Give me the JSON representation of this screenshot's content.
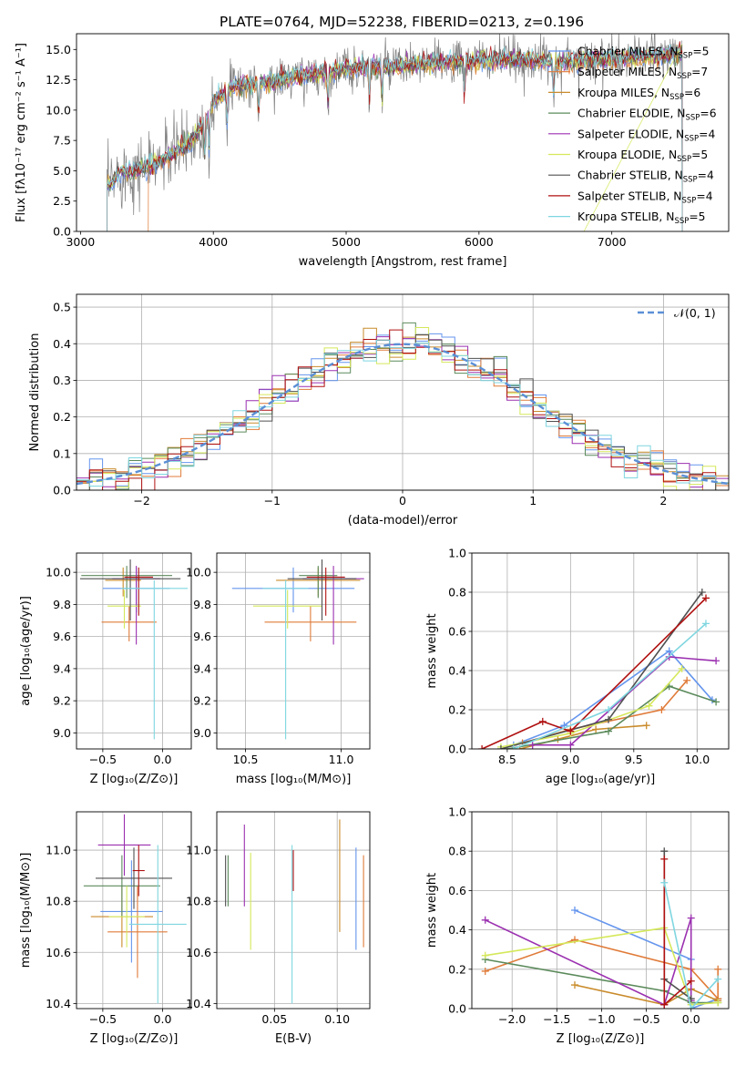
{
  "figure": {
    "title": "PLATE=0764, MJD=52238, FIBERID=0213, z=0.196"
  },
  "series_colors": [
    "#6495ed",
    "#e07b39",
    "#c98b2b",
    "#5b8a5b",
    "#9b30b0",
    "#d5e85a",
    "#505050",
    "#b01010",
    "#7fd6e0"
  ],
  "chart_data": [
    {
      "id": "spectrum",
      "type": "line",
      "xlabel": "wavelength [Angstrom, rest frame]",
      "ylabel": "Flux [fλ10⁻¹⁷ erg cm⁻² s⁻¹ A⁻¹]",
      "xlim": [
        2970,
        7880
      ],
      "ylim": [
        0,
        16.3
      ],
      "xticks": [
        3000,
        4000,
        5000,
        6000,
        7000
      ],
      "yticks": [
        0.0,
        2.5,
        5.0,
        7.5,
        10.0,
        12.5,
        15.0
      ],
      "grid": false,
      "legend_placement": "top-right",
      "legend": [
        "Chabrier MILES, N_SSP=5",
        "Salpeter MILES, N_SSP=7",
        "Kroupa MILES, N_SSP=6",
        "Chabrier ELODIE, N_SSP=6",
        "Salpeter ELODIE, N_SSP=4",
        "Kroupa ELODIE, N_SSP=5",
        "Chabrier STELIB, N_SSP=4",
        "Salpeter STELIB, N_SSP=4",
        "Kroupa STELIB, N_SSP=5"
      ],
      "continuum_x": [
        3200,
        3300,
        3500,
        3700,
        3850,
        3950,
        4000,
        4100,
        4200,
        4400,
        4600,
        4800,
        5000,
        5200,
        5400,
        5600,
        5800,
        6000,
        6200,
        6400,
        6600,
        6800,
        7000,
        7200,
        7400,
        7500
      ],
      "continuum_y": [
        3.6,
        4.9,
        5.2,
        6.5,
        7.6,
        9.3,
        10.8,
        11.7,
        12.0,
        12.3,
        12.7,
        13.0,
        13.4,
        13.5,
        13.6,
        13.8,
        14.0,
        14.1,
        14.2,
        14.1,
        14.0,
        14.1,
        14.2,
        14.3,
        14.5,
        14.6
      ],
      "model_start_x": [
        3200,
        3510,
        3200,
        3200,
        3200,
        3200,
        3200,
        3200,
        3200
      ],
      "model_end_x": [
        7530,
        7530,
        7530,
        7530,
        7530,
        6790,
        7530,
        7530,
        7530
      ]
    },
    {
      "id": "residual_histogram",
      "type": "line",
      "xlabel": "(data-model)/error",
      "ylabel": "Normed distribution",
      "xlim": [
        -2.5,
        2.5
      ],
      "ylim": [
        0,
        0.535
      ],
      "xticks": [
        -2,
        -1,
        0,
        1,
        2
      ],
      "yticks": [
        0.0,
        0.1,
        0.2,
        0.3,
        0.4,
        0.5
      ],
      "grid": true,
      "legend_placement": "top-right",
      "legend": [
        "𝒩(0, 1)"
      ],
      "bin_width": 0.1,
      "gaussian": {
        "mean": 0,
        "sigma": 1,
        "color": "#5b8fd6"
      }
    },
    {
      "id": "age_vs_Z",
      "type": "scatter",
      "xlabel": "Z [log₁₀(Z/Z⊙)]",
      "ylabel": "age  [log₁₀(age/yr)]",
      "xlim": [
        -0.72,
        0.24
      ],
      "ylim": [
        8.9,
        10.12
      ],
      "xticks": [
        -0.5,
        0.0
      ],
      "yticks": [
        9.0,
        9.2,
        9.4,
        9.6,
        9.8,
        10.0
      ],
      "grid": true,
      "points": [
        {
          "x": -0.22,
          "y": 9.9,
          "xerr": 0.28,
          "yerr_lo": 0.15,
          "yerr_hi": 0.13
        },
        {
          "x": -0.28,
          "y": 9.69,
          "xerr": 0.23,
          "yerr_lo": 0.12,
          "yerr_hi": 0.1
        },
        {
          "x": -0.33,
          "y": 9.95,
          "xerr": 0.15,
          "yerr_lo": 0.1,
          "yerr_hi": 0.08
        },
        {
          "x": -0.3,
          "y": 9.98,
          "xerr": 0.38,
          "yerr_lo": 0.14,
          "yerr_hi": 0.06
        },
        {
          "x": -0.22,
          "y": 9.96,
          "xerr": 0.2,
          "yerr_lo": 0.41,
          "yerr_hi": 0.08
        },
        {
          "x": -0.32,
          "y": 9.79,
          "xerr": 0.14,
          "yerr_lo": 0.14,
          "yerr_hi": 0.1
        },
        {
          "x": -0.27,
          "y": 9.96,
          "xerr": 0.42,
          "yerr_lo": 0.26,
          "yerr_hi": 0.12
        },
        {
          "x": -0.2,
          "y": 9.97,
          "xerr": 0.12,
          "yerr_lo": 0.24,
          "yerr_hi": 0.06
        },
        {
          "x": -0.07,
          "y": 9.9,
          "xerr": 0.28,
          "yerr_lo": 0.94,
          "yerr_hi": 0.05
        }
      ]
    },
    {
      "id": "age_vs_mass",
      "type": "scatter",
      "xlabel": "mass [log₁₀(M/M⊙)]",
      "ylabel": "",
      "xlim": [
        10.35,
        11.15
      ],
      "ylim": [
        8.9,
        10.12
      ],
      "xticks": [
        10.5,
        11.0
      ],
      "yticks": [
        9.0,
        9.2,
        9.4,
        9.6,
        9.8,
        10.0
      ],
      "grid": true,
      "points": [
        {
          "x": 10.75,
          "y": 9.9,
          "xerr": 0.32,
          "yerr_lo": 0.15,
          "yerr_hi": 0.13
        },
        {
          "x": 10.84,
          "y": 9.69,
          "xerr": 0.24,
          "yerr_lo": 0.12,
          "yerr_hi": 0.1
        },
        {
          "x": 10.88,
          "y": 9.95,
          "xerr": 0.22,
          "yerr_lo": 0.1,
          "yerr_hi": 0.08
        },
        {
          "x": 10.88,
          "y": 9.98,
          "xerr": 0.1,
          "yerr_lo": 0.14,
          "yerr_hi": 0.06
        },
        {
          "x": 10.96,
          "y": 9.96,
          "xerr": 0.16,
          "yerr_lo": 0.41,
          "yerr_hi": 0.08
        },
        {
          "x": 10.72,
          "y": 9.79,
          "xerr": 0.18,
          "yerr_lo": 0.14,
          "yerr_hi": 0.1
        },
        {
          "x": 10.9,
          "y": 9.96,
          "xerr": 0.18,
          "yerr_lo": 0.26,
          "yerr_hi": 0.12
        },
        {
          "x": 10.92,
          "y": 9.97,
          "xerr": 0.1,
          "yerr_lo": 0.24,
          "yerr_hi": 0.06
        },
        {
          "x": 10.71,
          "y": 9.9,
          "xerr": 0.12,
          "yerr_lo": 0.94,
          "yerr_hi": 0.05
        }
      ]
    },
    {
      "id": "mass_weight_vs_age",
      "type": "line",
      "xlabel": "age  [log₁₀(age/yr)]",
      "ylabel": "mass weight",
      "xlim": [
        8.22,
        10.25
      ],
      "ylim": [
        0,
        1.0
      ],
      "xticks": [
        8.5,
        9.0,
        9.5,
        10.0
      ],
      "yticks": [
        0.0,
        0.2,
        0.4,
        0.6,
        0.8,
        1.0
      ],
      "grid": true,
      "series": [
        {
          "x": [
            8.55,
            8.95,
            9.78,
            10.12
          ],
          "y": [
            0.02,
            0.12,
            0.5,
            0.25
          ]
        },
        {
          "x": [
            8.62,
            9.0,
            9.72,
            9.92
          ],
          "y": [
            0.03,
            0.1,
            0.2,
            0.35
          ]
        },
        {
          "x": [
            8.6,
            8.9,
            9.2,
            9.6
          ],
          "y": [
            0.0,
            0.05,
            0.1,
            0.12
          ]
        },
        {
          "x": [
            8.5,
            9.3,
            9.78,
            10.15
          ],
          "y": [
            0.0,
            0.09,
            0.32,
            0.24
          ]
        },
        {
          "x": [
            8.7,
            9.0,
            9.78,
            10.15
          ],
          "y": [
            0.02,
            0.02,
            0.47,
            0.45
          ]
        },
        {
          "x": [
            8.45,
            9.0,
            9.62,
            9.88
          ],
          "y": [
            0.01,
            0.08,
            0.22,
            0.41
          ]
        },
        {
          "x": [
            8.45,
            9.3,
            10.04
          ],
          "y": [
            0.0,
            0.15,
            0.8
          ]
        },
        {
          "x": [
            8.3,
            8.78,
            9.0,
            10.07
          ],
          "y": [
            0.0,
            0.14,
            0.09,
            0.77
          ]
        },
        {
          "x": [
            8.55,
            9.3,
            10.07
          ],
          "y": [
            0.0,
            0.2,
            0.64
          ]
        }
      ]
    },
    {
      "id": "mass_vs_Z",
      "type": "scatter",
      "xlabel": "Z [log₁₀(Z/Z⊙)]",
      "ylabel": "mass [log₁₀(M/M⊙)]",
      "xlim": [
        -0.72,
        0.24
      ],
      "ylim": [
        10.38,
        11.15
      ],
      "xticks": [
        -0.5,
        0.0
      ],
      "yticks": [
        10.4,
        10.6,
        10.8,
        11.0
      ],
      "grid": true,
      "points": [
        {
          "x": -0.26,
          "y": 10.76,
          "xerr": 0.26,
          "yerr": 0.2
        },
        {
          "x": -0.21,
          "y": 10.68,
          "xerr": 0.25,
          "yerr": 0.18
        },
        {
          "x": -0.34,
          "y": 10.74,
          "xerr": 0.26,
          "yerr": 0.12
        },
        {
          "x": -0.34,
          "y": 10.86,
          "xerr": 0.32,
          "yerr": 0.12
        },
        {
          "x": -0.32,
          "y": 11.02,
          "xerr": 0.22,
          "yerr": 0.12
        },
        {
          "x": -0.3,
          "y": 10.74,
          "xerr": 0.15,
          "yerr": 0.12
        },
        {
          "x": -0.24,
          "y": 10.89,
          "xerr": 0.32,
          "yerr": 0.12
        },
        {
          "x": -0.2,
          "y": 10.92,
          "xerr": 0.05,
          "yerr": 0.1
        },
        {
          "x": -0.04,
          "y": 10.71,
          "xerr": 0.24,
          "yerr": 0.31
        }
      ]
    },
    {
      "id": "mass_vs_EBV",
      "type": "scatter",
      "xlabel": "E(B-V)",
      "ylabel": "",
      "xlim": [
        0.004,
        0.126
      ],
      "ylim": [
        10.38,
        11.15
      ],
      "xticks": [
        0.05,
        0.1
      ],
      "yticks": [
        10.4,
        10.6,
        10.8,
        11.0
      ],
      "grid": true,
      "points": [
        {
          "x": 0.115,
          "y": 10.81,
          "yerr": 0.2
        },
        {
          "x": 0.121,
          "y": 10.8,
          "yerr": 0.18
        },
        {
          "x": 0.102,
          "y": 10.9,
          "yerr": 0.22
        },
        {
          "x": 0.013,
          "y": 10.88,
          "yerr": 0.1
        },
        {
          "x": 0.026,
          "y": 10.94,
          "yerr": 0.16
        },
        {
          "x": 0.031,
          "y": 10.8,
          "yerr": 0.19
        },
        {
          "x": 0.011,
          "y": 10.88,
          "yerr": 0.1
        },
        {
          "x": 0.065,
          "y": 10.92,
          "yerr": 0.08
        },
        {
          "x": 0.064,
          "y": 10.71,
          "yerr": 0.31
        }
      ]
    },
    {
      "id": "mass_weight_vs_Z",
      "type": "line",
      "xlabel": "Z [log₁₀(Z/Z⊙)]",
      "ylabel": "mass weight",
      "xlim": [
        -2.45,
        0.42
      ],
      "ylim": [
        0,
        1.0
      ],
      "xticks": [
        -2.0,
        -1.5,
        -1.0,
        -0.5,
        0.0
      ],
      "yticks": [
        0.0,
        0.2,
        0.4,
        0.6,
        0.8,
        1.0
      ],
      "grid": true,
      "series": [
        {
          "x": [
            -1.3,
            0.0,
            0.0,
            0.3
          ],
          "y": [
            0.5,
            0.25,
            0.0,
            0.05
          ]
        },
        {
          "x": [
            -2.3,
            -1.3,
            0.0,
            0.3,
            0.3
          ],
          "y": [
            0.19,
            0.35,
            0.2,
            0.05,
            0.2
          ]
        },
        {
          "x": [
            -1.3,
            -0.3,
            0.0,
            0.3
          ],
          "y": [
            0.12,
            0.02,
            0.1,
            0.04
          ]
        },
        {
          "x": [
            -2.3,
            -0.3,
            0.0,
            0.3
          ],
          "y": [
            0.25,
            0.09,
            0.03,
            0.03
          ]
        },
        {
          "x": [
            -2.3,
            -0.3,
            0.0,
            0.0
          ],
          "y": [
            0.45,
            0.02,
            0.46,
            0.04
          ]
        },
        {
          "x": [
            -2.3,
            -0.3,
            0.0,
            0.3
          ],
          "y": [
            0.27,
            0.41,
            0.02,
            0.03
          ]
        },
        {
          "x": [
            -0.3,
            -0.3,
            0.0
          ],
          "y": [
            0.8,
            0.15,
            0.05
          ]
        },
        {
          "x": [
            -0.3,
            -0.3,
            0.0
          ],
          "y": [
            0.76,
            0.02,
            0.14
          ]
        },
        {
          "x": [
            -0.3,
            0.0,
            0.3
          ],
          "y": [
            0.64,
            0.0,
            0.15
          ]
        }
      ]
    }
  ]
}
